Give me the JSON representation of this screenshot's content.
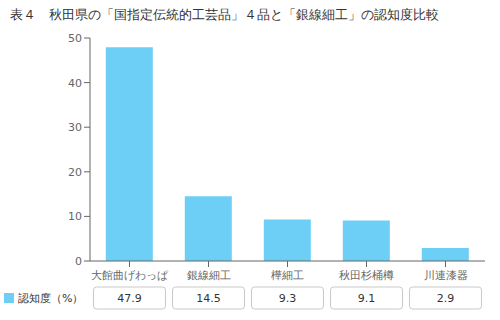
{
  "chart_data": {
    "type": "bar",
    "title": "表４　秋田県の「国指定伝統的工芸品」４品と「銀線細工」の認知度比較",
    "categories": [
      "大館曲げわっぱ",
      "銀線細工",
      "樺細工",
      "秋田杉桶樽",
      "川連漆器"
    ],
    "series": [
      {
        "name": "認知度（%）",
        "color": "#6DCFF6",
        "values": [
          47.9,
          14.5,
          9.3,
          9.1,
          2.9
        ]
      }
    ],
    "ylim": [
      0,
      50
    ],
    "yticks": [
      0,
      10,
      20,
      30,
      40,
      50
    ],
    "grid": false,
    "legend": "bottom",
    "data_labels": true
  }
}
